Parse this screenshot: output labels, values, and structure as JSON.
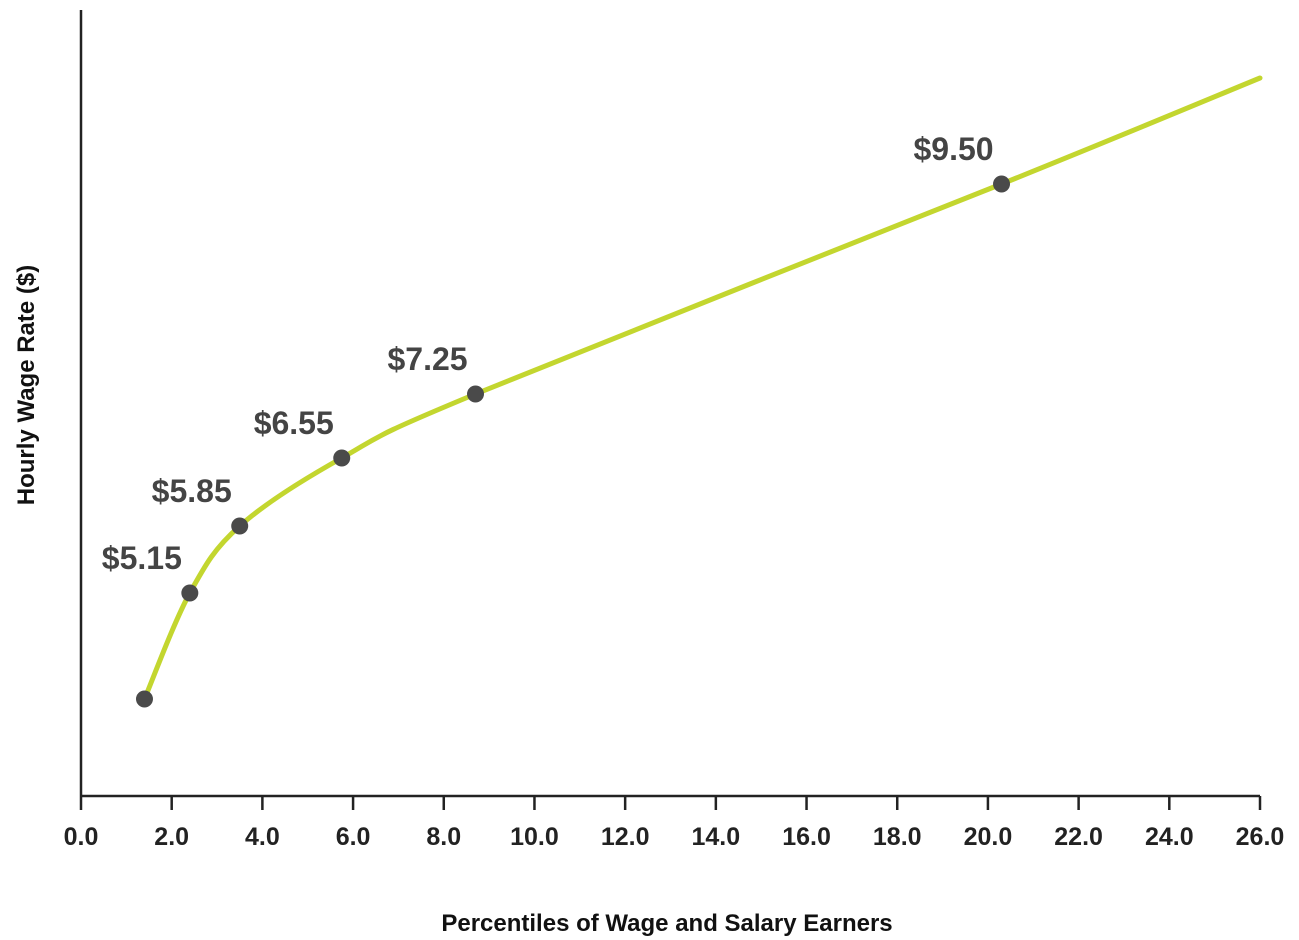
{
  "chart_data": {
    "type": "line",
    "title": "",
    "xlabel": "Percentiles of Wage and Salary Earners",
    "ylabel": "Hourly Wage Rate ($)",
    "xlim": [
      0,
      26
    ],
    "x_ticks": [
      "0.0",
      "2.0",
      "4.0",
      "6.0",
      "8.0",
      "10.0",
      "12.0",
      "14.0",
      "16.0",
      "18.0",
      "20.0",
      "22.0",
      "24.0",
      "26.0"
    ],
    "grid": false,
    "series": [
      {
        "points": [
          {
            "x": 1.4,
            "y": 4.5
          },
          {
            "x": 2.4,
            "y": 5.15
          },
          {
            "x": 3.5,
            "y": 5.85
          },
          {
            "x": 5.75,
            "y": 6.55
          },
          {
            "x": 8.7,
            "y": 7.25
          },
          {
            "x": 20.3,
            "y": 9.5
          },
          {
            "x": 26.0,
            "y": 10.6
          }
        ]
      }
    ],
    "markers": [
      {
        "x": 1.4,
        "y": 4.5,
        "label": ""
      },
      {
        "x": 2.4,
        "y": 5.15,
        "label": "$5.15"
      },
      {
        "x": 3.5,
        "y": 5.85,
        "label": "$5.85"
      },
      {
        "x": 5.75,
        "y": 6.55,
        "label": "$6.55"
      },
      {
        "x": 8.7,
        "y": 7.25,
        "label": "$7.25"
      },
      {
        "x": 20.3,
        "y": 9.5,
        "label": "$9.50"
      }
    ],
    "colors": {
      "line": "#c3d62f",
      "marker": "#4a4a4a",
      "axis": "#222222",
      "label": "#444444"
    }
  }
}
